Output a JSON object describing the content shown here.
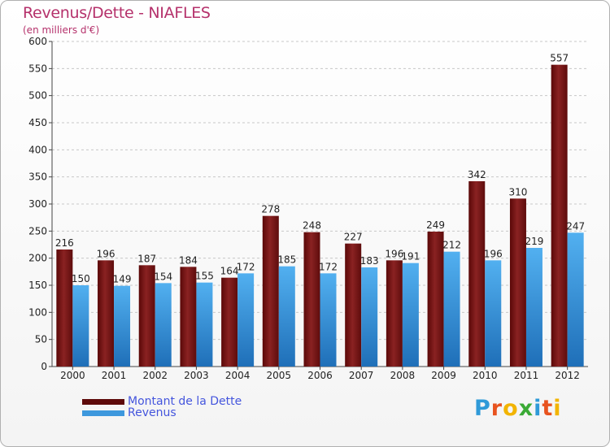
{
  "title": "Revenus/Dette - NIAFLES",
  "subtitle": "(en milliers d'€)",
  "logo": {
    "text": "Proxiti",
    "letters": [
      {
        "ch": "P",
        "color": "#2f9ad8"
      },
      {
        "ch": "r",
        "color": "#e8531f"
      },
      {
        "ch": "o",
        "color": "#f2b400"
      },
      {
        "ch": "x",
        "color": "#3aaa35"
      },
      {
        "ch": "i",
        "color": "#2f9ad8"
      },
      {
        "ch": "t",
        "color": "#e8531f"
      },
      {
        "ch": "i",
        "color": "#f2b400"
      }
    ]
  },
  "colors": {
    "dette": "#7a1010",
    "revenus": "#3d98dd",
    "axis_text": "#222222"
  },
  "chart_data": {
    "type": "bar",
    "categories": [
      "2000",
      "2001",
      "2002",
      "2003",
      "2004",
      "2005",
      "2006",
      "2007",
      "2008",
      "2009",
      "2010",
      "2011",
      "2012"
    ],
    "series": [
      {
        "name": "Montant de la Dette",
        "values": [
          216,
          196,
          187,
          184,
          164,
          278,
          248,
          227,
          196,
          249,
          342,
          310,
          557
        ]
      },
      {
        "name": "Revenus",
        "values": [
          150,
          149,
          154,
          155,
          172,
          185,
          172,
          183,
          191,
          212,
          196,
          219,
          247
        ]
      }
    ],
    "yticks": [
      "0",
      "50",
      "100",
      "150",
      "200",
      "250",
      "300",
      "350",
      "400",
      "450",
      "500",
      "550",
      "600"
    ],
    "ylim": [
      0,
      600
    ],
    "grid": true,
    "legend": "bottom-left"
  }
}
